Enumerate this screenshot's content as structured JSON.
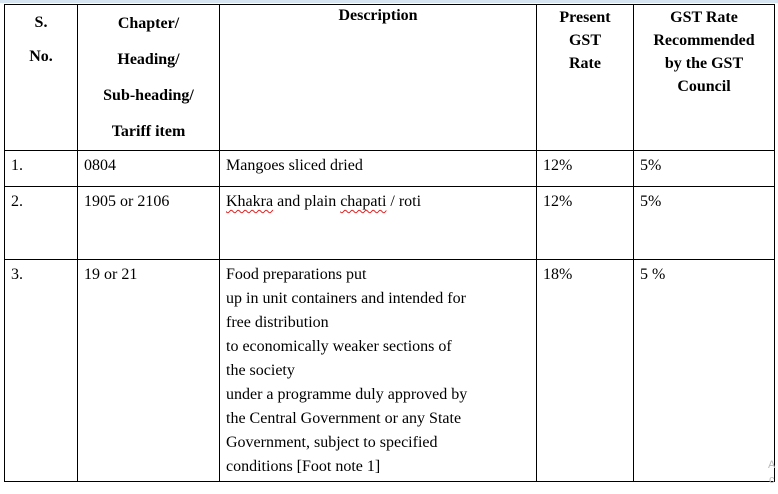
{
  "header": {
    "sno": [
      "S.",
      "No."
    ],
    "chapter": [
      "Chapter/",
      "Heading/",
      "Sub-heading/",
      "Tariff item"
    ],
    "description": "Description",
    "present_rate": [
      "Present",
      "GST",
      "Rate"
    ],
    "recommended_rate": [
      "GST Rate",
      "Recommended",
      "by the GST",
      "Council"
    ]
  },
  "rows": [
    {
      "sno": "1.",
      "chapter": "0804",
      "description_lines": [
        "Mangoes sliced dried"
      ],
      "present_rate": "12%",
      "recommended_rate": "5%"
    },
    {
      "sno": "2.",
      "chapter": "1905 or 2106",
      "description_parts": {
        "w1": "Khakra",
        "w2": " and plain ",
        "w3": "chapati",
        "w4": " / roti"
      },
      "present_rate": "12%",
      "recommended_rate": "5%"
    },
    {
      "sno": "3.",
      "chapter": "19 or 21",
      "description_lines": [
        "Food preparations put",
        "up in unit containers and intended for",
        "free distribution",
        "to economically weaker sections of",
        "the society",
        "under a programme duly approved by",
        "the Central Government or any State",
        "Government, subject to specified",
        "conditions [Foot note 1]"
      ],
      "present_rate": "18%",
      "recommended_rate": "5 %"
    }
  ],
  "edge_fragments": [
    "A",
    "c"
  ]
}
